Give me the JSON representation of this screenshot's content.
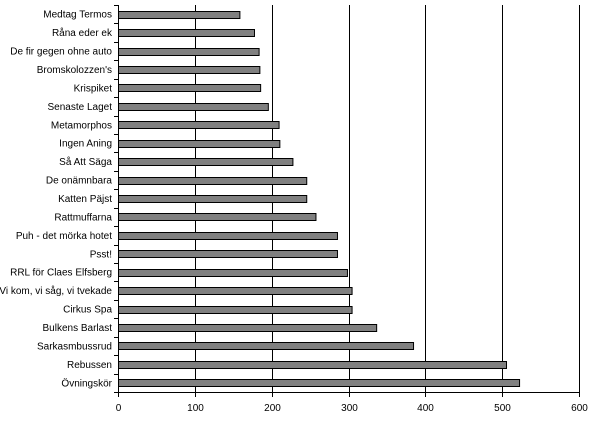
{
  "chart_data": {
    "type": "bar",
    "orientation": "horizontal",
    "title": "",
    "xlabel": "",
    "ylabel": "",
    "xlim": [
      0,
      600
    ],
    "x_ticks": [
      0,
      100,
      200,
      300,
      400,
      500,
      600
    ],
    "grid": "vertical major gridlines",
    "legend": "none",
    "bar_color": "#808080",
    "categories": [
      "Medtag Termos",
      "Råna eder ek",
      "De fir gegen ohne auto",
      "Bromskolozzen's",
      "Krispiket",
      "Senaste Laget",
      "Metamorphos",
      "Ingen Aning",
      "Så Att Säga",
      "De onämnbara",
      "Katten Päjst",
      "Rattmuffarna",
      "Puh - det mörka hotet",
      "Psst!",
      "RRL för Claes Elfsberg",
      "Vi kom, vi såg, vi tvekade",
      "Cirkus Spa",
      "Bulkens Barlast",
      "Sarkasmbussrud",
      "Rebussen",
      "Övningskör"
    ],
    "values": [
      158,
      177,
      183,
      184,
      185,
      195,
      209,
      210,
      227,
      245,
      245,
      257,
      285,
      285,
      298,
      304,
      304,
      336,
      384,
      505,
      522
    ]
  }
}
